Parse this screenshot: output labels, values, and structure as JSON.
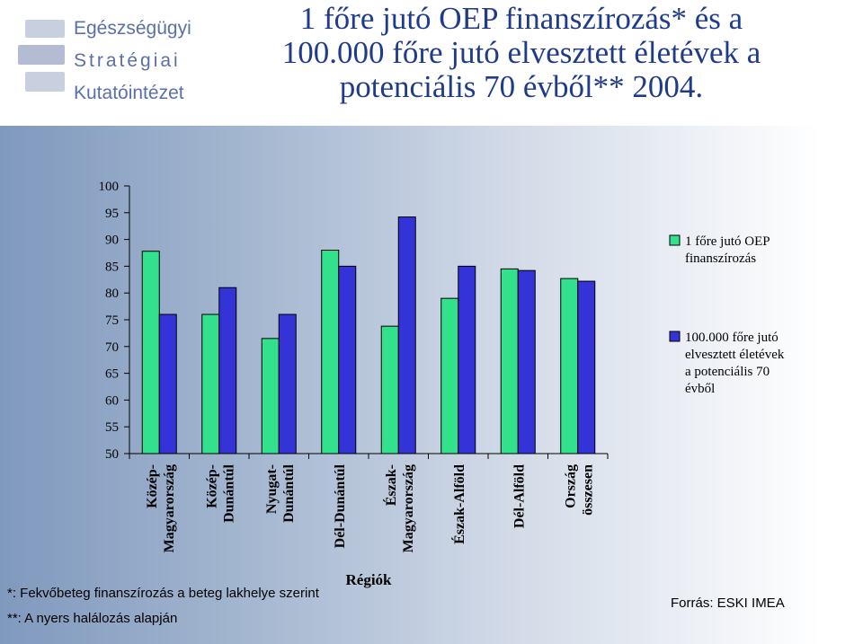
{
  "logo": {
    "line1": "Egészségügyi",
    "line2": "Stratégiai",
    "line3": "Kutatóintézet"
  },
  "title": {
    "line1": "1 főre jutó OEP finanszírozás* és a",
    "line2": "100.000 főre jutó elvesztett életévek a",
    "line3": "potenciális 70 évből** 2004."
  },
  "chart_data": {
    "type": "bar",
    "title": "1 főre jutó OEP finanszírozás* és a 100.000 főre jutó elvesztett életévek a potenciális 70 évből** 2004.",
    "xlabel": "Régiók",
    "ylabel": "",
    "ylim": [
      50,
      100
    ],
    "yticks": [
      100,
      95,
      90,
      85,
      80,
      75,
      70,
      65,
      60,
      55,
      50
    ],
    "categories": [
      [
        "Közép-",
        "Magyarország"
      ],
      [
        "Közép-",
        "Dunántúl"
      ],
      [
        "Nyugat-",
        "Dunántúl"
      ],
      [
        "Dél-Dunántúl"
      ],
      [
        "Észak-",
        "Magyarország"
      ],
      [
        "Észak-Alföld"
      ],
      [
        "Dél-Alföld"
      ],
      [
        "Ország",
        "összesen"
      ]
    ],
    "series": [
      {
        "name": "1 főre jutó OEP finanszírozás",
        "name_lines": [
          "1 főre jutó OEP",
          "finanszírozás"
        ],
        "color": "#33e08c",
        "values": [
          87.8,
          76.0,
          71.5,
          88.0,
          73.8,
          79.0,
          84.5,
          82.7
        ]
      },
      {
        "name": "100.000 főre jutó elvesztett életévek a potenciális 70 évből",
        "name_lines": [
          "100.000 főre jutó",
          "elvesztett életévek",
          "a potenciális 70",
          "évből"
        ],
        "color": "#3333d8",
        "values": [
          76.0,
          81.0,
          76.0,
          85.0,
          94.2,
          85.0,
          84.2,
          82.2
        ]
      }
    ],
    "legend_position": "right",
    "grid": false
  },
  "footnotes": {
    "note1": "*: Fekvőbeteg finanszírozás a beteg lakhelye szerint",
    "note2": "**: A nyers halálozás alapján"
  },
  "source": "Forrás: ESKI IMEA"
}
